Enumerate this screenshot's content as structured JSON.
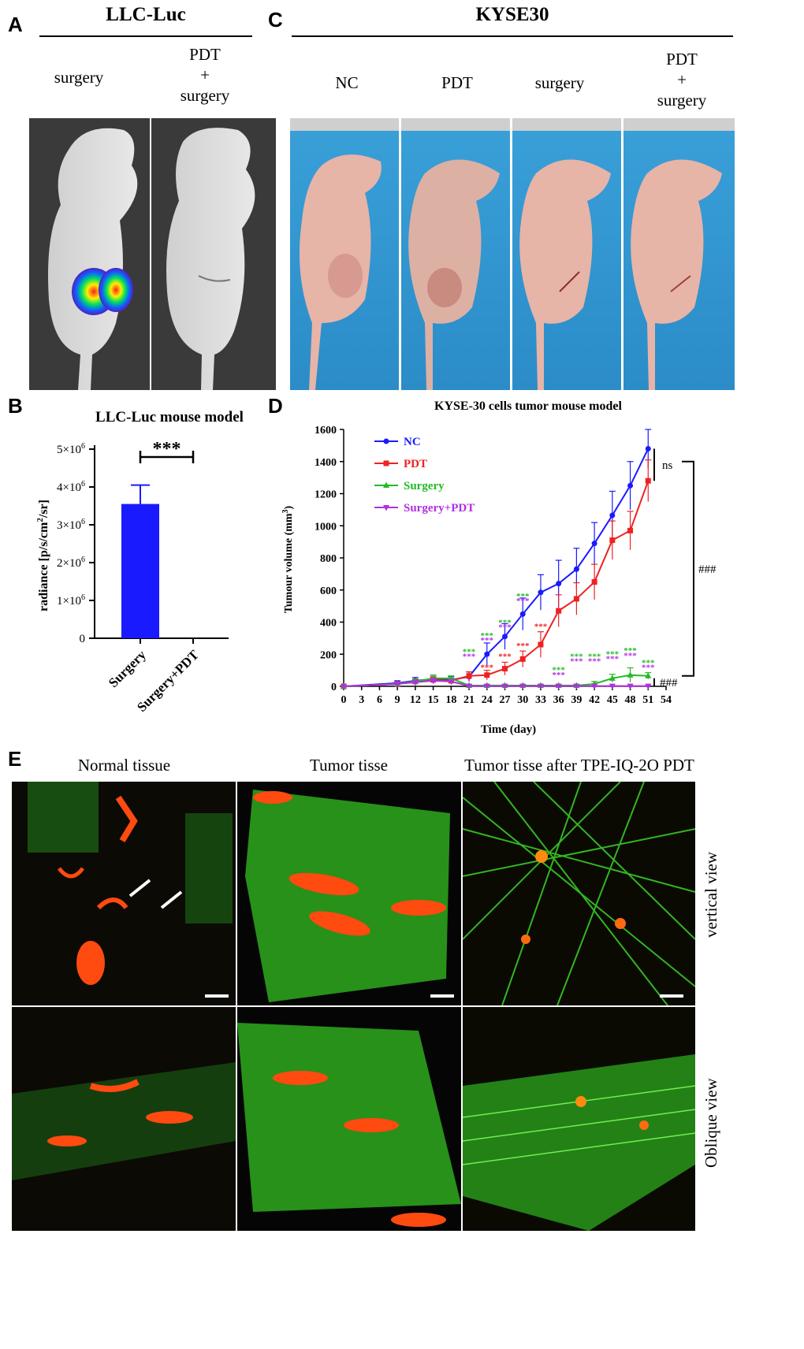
{
  "panel_letters": {
    "a": "A",
    "b": "B",
    "c": "C",
    "d": "D",
    "e": "E"
  },
  "panel_a": {
    "title": "LLC-Luc",
    "groups": [
      "surgery",
      "PDT\n+\nsurgery"
    ]
  },
  "panel_c": {
    "title": "KYSE30",
    "groups": [
      "NC",
      "PDT",
      "surgery",
      "PDT\n+\nsurgery"
    ]
  },
  "panel_e": {
    "columns": [
      "Normal tissue",
      "Tumor tisse",
      "Tumor tisse after TPE-IQ-2O PDT"
    ],
    "rows": [
      "vertical view",
      "Oblique view"
    ]
  },
  "colors": {
    "nc": "#1a1aff",
    "pdt": "#ee2222",
    "surgery": "#22bb22",
    "surgery_pdt": "#b030e0",
    "bar": "#1a1aff"
  },
  "chart_data": [
    {
      "type": "bar",
      "title": "LLC-Luc  mouse model",
      "categories": [
        "Surgery",
        "Surgery+PDT"
      ],
      "values": [
        3550000,
        0
      ],
      "errors": [
        500000,
        0
      ],
      "ylabel": "radiance [p/s/cm2/sr]",
      "ylabel_main": "radiance [p/s/cm",
      "ylabel_sup": "2",
      "ylabel_end": "/sr]",
      "ylim": [
        0,
        5000000
      ],
      "yticks": [
        {
          "value": 0,
          "base": "0",
          "exp": ""
        },
        {
          "value": 1000000,
          "base": "1×10",
          "exp": "6"
        },
        {
          "value": 2000000,
          "base": "2×10",
          "exp": "6"
        },
        {
          "value": 3000000,
          "base": "3×10",
          "exp": "6"
        },
        {
          "value": 4000000,
          "base": "4×10",
          "exp": "6"
        },
        {
          "value": 5000000,
          "base": "5×10",
          "exp": "6"
        }
      ],
      "significance": "***"
    },
    {
      "type": "line",
      "title": "KYSE-30 cells tumor mouse model",
      "xlabel": "Time (day)",
      "ylabel": "Tumour volume (mm3)",
      "ylabel_main": "Tumour volume (mm",
      "ylabel_sup": "3",
      "ylabel_end": ")",
      "x": [
        0,
        9,
        12,
        15,
        18,
        21,
        24,
        27,
        30,
        33,
        36,
        39,
        42,
        45,
        48,
        51
      ],
      "xticks": [
        0,
        3,
        6,
        9,
        12,
        15,
        18,
        21,
        24,
        27,
        30,
        33,
        36,
        39,
        42,
        45,
        48,
        51,
        54
      ],
      "xlim": [
        0,
        54
      ],
      "ylim": [
        0,
        1600
      ],
      "yticks": [
        0,
        200,
        400,
        600,
        800,
        1000,
        1200,
        1400,
        1600
      ],
      "series": [
        {
          "name": "NC",
          "color": "#1a1aff",
          "marker": "circle",
          "values": [
            0,
            20,
            35,
            45,
            40,
            60,
            200,
            310,
            450,
            585,
            640,
            730,
            890,
            1065,
            1250,
            1480
          ],
          "errors": [
            0,
            15,
            20,
            25,
            20,
            30,
            70,
            80,
            100,
            110,
            145,
            130,
            130,
            150,
            150,
            120
          ]
        },
        {
          "name": "PDT",
          "color": "#ee2222",
          "marker": "square",
          "values": [
            0,
            15,
            30,
            40,
            35,
            65,
            70,
            110,
            170,
            260,
            470,
            545,
            650,
            910,
            970,
            1280
          ],
          "errors": [
            0,
            10,
            15,
            20,
            15,
            25,
            30,
            40,
            50,
            80,
            100,
            100,
            110,
            120,
            120,
            130
          ]
        },
        {
          "name": "Surgery",
          "color": "#22bb22",
          "marker": "triangle-up",
          "values": [
            0,
            15,
            30,
            50,
            50,
            5,
            5,
            5,
            5,
            5,
            5,
            5,
            15,
            50,
            70,
            65
          ],
          "errors": [
            0,
            10,
            15,
            20,
            15,
            5,
            5,
            5,
            5,
            5,
            5,
            5,
            15,
            25,
            45,
            20
          ]
        },
        {
          "name": "Surgery+PDT",
          "color": "#b030e0",
          "marker": "triangle-down",
          "values": [
            0,
            15,
            25,
            35,
            30,
            2,
            2,
            2,
            2,
            2,
            2,
            2,
            2,
            2,
            2,
            2
          ],
          "errors": [
            0,
            10,
            10,
            15,
            10,
            2,
            2,
            2,
            2,
            2,
            2,
            2,
            2,
            2,
            2,
            2
          ]
        }
      ],
      "annotations": [
        {
          "x": 21,
          "y": 200,
          "text": "***",
          "color": "#22bb22"
        },
        {
          "x": 21,
          "y": 170,
          "text": "***",
          "color": "#b030e0"
        },
        {
          "x": 24,
          "y": 100,
          "text": "***",
          "color": "#ee2222"
        },
        {
          "x": 24,
          "y": 300,
          "text": "***",
          "color": "#22bb22"
        },
        {
          "x": 24,
          "y": 270,
          "text": "***",
          "color": "#b030e0"
        },
        {
          "x": 24,
          "y": 100,
          "text": "***",
          "color": "#ee2222"
        },
        {
          "x": 27,
          "y": 380,
          "text": "***",
          "color": "#22bb22"
        },
        {
          "x": 27,
          "y": 350,
          "text": "***",
          "color": "#b030e0"
        },
        {
          "x": 27,
          "y": 170,
          "text": "***",
          "color": "#ee2222"
        },
        {
          "x": 30,
          "y": 545,
          "text": "***",
          "color": "#22bb22"
        },
        {
          "x": 30,
          "y": 515,
          "text": "***",
          "color": "#b030e0"
        },
        {
          "x": 30,
          "y": 235,
          "text": "***",
          "color": "#ee2222"
        },
        {
          "x": 33,
          "y": 355,
          "text": "***",
          "color": "#ee2222"
        },
        {
          "x": 36,
          "y": 85,
          "text": "***",
          "color": "#22bb22"
        },
        {
          "x": 36,
          "y": 55,
          "text": "***",
          "color": "#b030e0"
        },
        {
          "x": 39,
          "y": 170,
          "text": "***",
          "color": "#22bb22"
        },
        {
          "x": 39,
          "y": 140,
          "text": "***",
          "color": "#b030e0"
        },
        {
          "x": 42,
          "y": 170,
          "text": "***",
          "color": "#22bb22"
        },
        {
          "x": 42,
          "y": 140,
          "text": "***",
          "color": "#b030e0"
        },
        {
          "x": 45,
          "y": 185,
          "text": "***",
          "color": "#22bb22"
        },
        {
          "x": 45,
          "y": 155,
          "text": "***",
          "color": "#b030e0"
        },
        {
          "x": 48,
          "y": 205,
          "text": "***",
          "color": "#22bb22"
        },
        {
          "x": 48,
          "y": 175,
          "text": "***",
          "color": "#b030e0"
        },
        {
          "x": 51,
          "y": 130,
          "text": "***",
          "color": "#22bb22"
        },
        {
          "x": 51,
          "y": 100,
          "text": "***",
          "color": "#b030e0"
        }
      ],
      "brackets": [
        {
          "label": "ns",
          "from": 1480,
          "to": 1280
        },
        {
          "label": "###",
          "from": 1400,
          "to": 65
        },
        {
          "label": "###",
          "from": 65,
          "to": 2
        }
      ]
    }
  ]
}
